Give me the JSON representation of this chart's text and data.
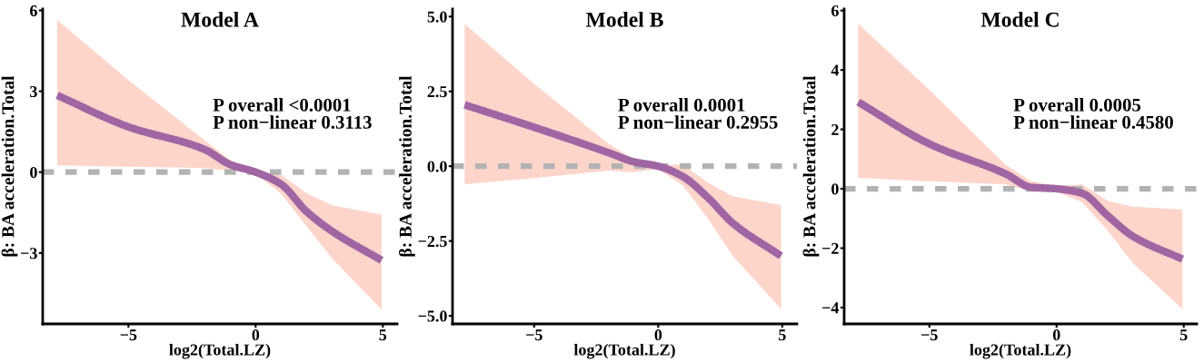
{
  "chart_data": [
    {
      "type": "line",
      "title": "Model A",
      "xlabel": "log2(Total.LZ)",
      "ylabel": "β: BA acceleration.Total",
      "xlim": [
        -8.37,
        5.56
      ],
      "ylim": [
        -5.63,
        6.05
      ],
      "xticks": [
        -5,
        0,
        5
      ],
      "yticks": [
        -3,
        0,
        3,
        6
      ],
      "grid": false,
      "legend": false,
      "series": [
        {
          "color": "#a066a3",
          "x": [
            -7.8,
            -5,
            -2,
            -1,
            0,
            1,
            2,
            3,
            4.95
          ],
          "values": [
            2.85,
            1.68,
            0.84,
            0.28,
            0,
            -0.45,
            -1.46,
            -2.19,
            -3.27
          ],
          "upper": [
            5.65,
            3.42,
            1.18,
            0.45,
            0.05,
            -0.1,
            -0.78,
            -1.23,
            -1.57
          ],
          "lower": [
            0.25,
            0.2,
            0.15,
            0.05,
            -0.05,
            -0.8,
            -2.0,
            -3.2,
            -5.1
          ]
        }
      ],
      "ref_lines": [
        {
          "axis": "y",
          "value": 0,
          "color": "#b3b3b3",
          "line_style": "dashed"
        }
      ],
      "annotations": [
        "P overall <0.0001",
        "P non−linear 0.3113"
      ]
    },
    {
      "type": "line",
      "title": "Model B",
      "xlabel": "log2(Total.LZ)",
      "ylabel": "β: BA acceleration.Total",
      "xlim": [
        -8.29,
        5.59
      ],
      "ylim": [
        -5.27,
        5.25
      ],
      "xticks": [
        -5,
        0,
        5
      ],
      "yticks": [
        {
          "value": -5,
          "label": "−5.0"
        },
        {
          "value": -2.5,
          "label": "−2.5"
        },
        {
          "value": 0,
          "label": "0.0"
        },
        2.5,
        {
          "value": 5,
          "label": "5.0"
        }
      ],
      "grid": false,
      "legend": false,
      "series": [
        {
          "color": "#a066a3",
          "x": [
            -7.8,
            -5,
            -2,
            -1,
            0,
            1,
            2,
            3,
            4.95
          ],
          "values": [
            2.05,
            1.3,
            0.45,
            0.15,
            0,
            -0.35,
            -1.05,
            -1.9,
            -3.0
          ],
          "upper": [
            4.75,
            2.75,
            0.75,
            0.25,
            0.05,
            0.05,
            -0.55,
            -1.0,
            -1.3
          ],
          "lower": [
            -0.6,
            -0.4,
            -0.15,
            -0.2,
            -0.1,
            -0.65,
            -1.75,
            -3.0,
            -4.77
          ]
        }
      ],
      "ref_lines": [
        {
          "axis": "y",
          "value": 0,
          "color": "#b3b3b3",
          "line_style": "dashed"
        }
      ],
      "annotations": [
        "P overall 0.0001",
        "P non−linear 0.2955"
      ]
    },
    {
      "type": "line",
      "title": "Model C",
      "xlabel": "log2(Total.LZ)",
      "ylabel": "β: BA acceleration.Total",
      "xlim": [
        -8.35,
        5.51
      ],
      "ylim": [
        -4.55,
        6.05
      ],
      "xticks": [
        -5,
        0,
        5
      ],
      "yticks": [
        -4,
        -2,
        0,
        2,
        4,
        6
      ],
      "grid": false,
      "legend": false,
      "series": [
        {
          "color": "#a066a3",
          "x": [
            -7.8,
            -5,
            -2,
            -1,
            0,
            1,
            2,
            3,
            4.95
          ],
          "values": [
            2.92,
            1.51,
            0.5,
            0.05,
            0,
            -0.15,
            -0.9,
            -1.6,
            -2.37
          ],
          "upper": [
            5.55,
            3.33,
            0.8,
            0.25,
            0.1,
            0.15,
            -0.4,
            -0.6,
            -0.7
          ],
          "lower": [
            0.37,
            0.25,
            0.15,
            -0.1,
            -0.1,
            -0.45,
            -1.4,
            -2.5,
            -4.05
          ]
        }
      ],
      "ref_lines": [
        {
          "axis": "y",
          "value": 0,
          "color": "#b3b3b3",
          "line_style": "dashed"
        }
      ],
      "annotations": [
        "P overall 0.0005",
        "P non−linear 0.4580"
      ]
    }
  ]
}
